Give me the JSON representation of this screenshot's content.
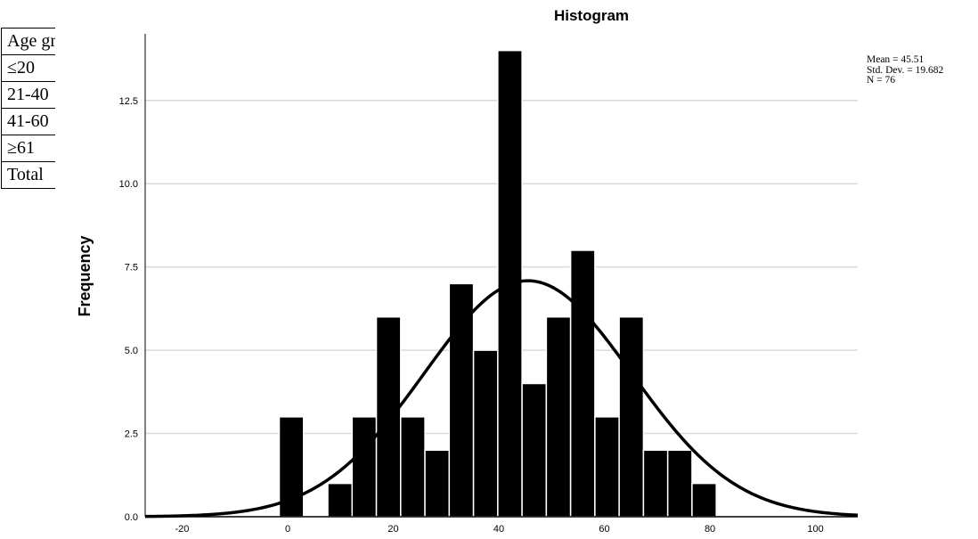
{
  "table": {
    "rows": [
      "Age group",
      "≤20",
      "21-40",
      "41-60",
      "≥61",
      "Total"
    ]
  },
  "chart_data": {
    "type": "bar",
    "title": "Histogram",
    "xlabel": "",
    "ylabel": "Frequency",
    "bin_width": 4.6,
    "bins": [
      {
        "x_start": -1.6,
        "x_end": 3.0,
        "count": 3
      },
      {
        "x_start": 3.0,
        "x_end": 7.6,
        "count": 0
      },
      {
        "x_start": 7.6,
        "x_end": 12.2,
        "count": 1
      },
      {
        "x_start": 12.2,
        "x_end": 16.8,
        "count": 3
      },
      {
        "x_start": 16.8,
        "x_end": 21.4,
        "count": 6
      },
      {
        "x_start": 21.4,
        "x_end": 26.0,
        "count": 3
      },
      {
        "x_start": 26.0,
        "x_end": 30.6,
        "count": 2
      },
      {
        "x_start": 30.6,
        "x_end": 35.2,
        "count": 7
      },
      {
        "x_start": 35.2,
        "x_end": 39.8,
        "count": 5
      },
      {
        "x_start": 39.8,
        "x_end": 44.4,
        "count": 14
      },
      {
        "x_start": 44.4,
        "x_end": 49.0,
        "count": 4
      },
      {
        "x_start": 49.0,
        "x_end": 53.6,
        "count": 6
      },
      {
        "x_start": 53.6,
        "x_end": 58.2,
        "count": 8
      },
      {
        "x_start": 58.2,
        "x_end": 62.8,
        "count": 3
      },
      {
        "x_start": 62.8,
        "x_end": 67.4,
        "count": 6
      },
      {
        "x_start": 67.4,
        "x_end": 72.0,
        "count": 2
      },
      {
        "x_start": 72.0,
        "x_end": 76.6,
        "count": 2
      },
      {
        "x_start": 76.6,
        "x_end": 81.2,
        "count": 1
      }
    ],
    "normal_curve": {
      "mean": 45.51,
      "sd": 19.682,
      "n": 76
    },
    "xlim": [
      -27,
      108
    ],
    "ylim": [
      0,
      14.5
    ],
    "x_ticks": [
      "-20",
      "0",
      "20",
      "40",
      "60",
      "80",
      "100"
    ],
    "x_tick_values": [
      -20,
      0,
      20,
      40,
      60,
      80,
      100
    ],
    "y_ticks": [
      "0.0",
      "2.5",
      "5.0",
      "7.5",
      "10.0",
      "12.5"
    ],
    "y_tick_values": [
      0,
      2.5,
      5,
      7.5,
      10,
      12.5
    ],
    "grid": true,
    "legend_placement": "top-right",
    "stats_labels": [
      "Mean = 45.51",
      "Std. Dev. = 19.682",
      "N = 76"
    ],
    "colors": {
      "bar": "#000000",
      "bar_edge": "#ffffff",
      "grid": "#d9d9d9",
      "curve": "#000000"
    }
  }
}
